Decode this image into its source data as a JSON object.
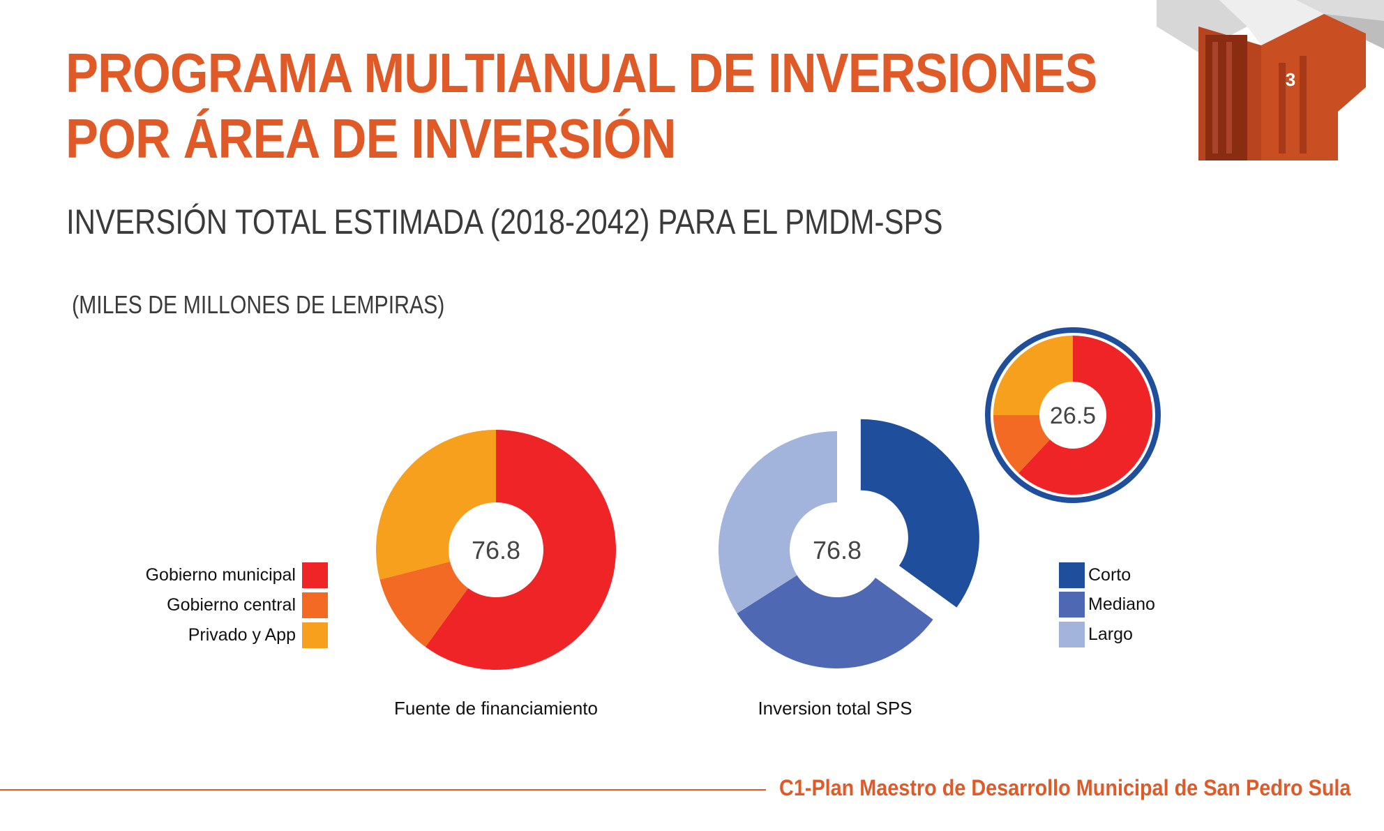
{
  "slide": {
    "title_line1": "PROGRAMA MULTIANUAL DE INVERSIONES",
    "title_line2": "POR ÁREA DE INVERSIÓN",
    "subtitle": "INVERSIÓN TOTAL ESTIMADA (2018-2042) PARA EL PMDM-SPS",
    "unit_note": "(MILES DE MILLONES DE LEMPIRAS)",
    "page_number": "3",
    "footer": "C1-Plan Maestro de Desarrollo Municipal de San Pedro Sula",
    "accent_color": "#e05a28"
  },
  "chart_data": [
    {
      "type": "pie",
      "variant": "donut",
      "title": "Fuente de financiamiento",
      "center_label": "76.8",
      "categories": [
        "Gobierno municipal",
        "Gobierno central",
        "Privado y App"
      ],
      "values": [
        60,
        11,
        29
      ],
      "colors": [
        "#ee2426",
        "#f26a23",
        "#f7a01e"
      ],
      "legend_position": "left"
    },
    {
      "type": "pie",
      "variant": "donut",
      "title": "Inversion total SPS",
      "center_label": "76.8",
      "categories": [
        "Corto",
        "Mediano",
        "Largo"
      ],
      "values": [
        35,
        31,
        34
      ],
      "colors": [
        "#1f4e9c",
        "#4f68b3",
        "#a2b3dc"
      ],
      "exploded": [
        "Corto"
      ],
      "legend_position": "right"
    },
    {
      "type": "pie",
      "variant": "donut",
      "title": "",
      "center_label": "26.5",
      "categories": [
        "Gobierno municipal",
        "Gobierno central",
        "Privado y App"
      ],
      "values": [
        62,
        13,
        25
      ],
      "colors": [
        "#ee2426",
        "#f26a23",
        "#f7a01e"
      ],
      "ring_color": "#1f4e9c",
      "linked_to_slice": "Corto"
    }
  ]
}
